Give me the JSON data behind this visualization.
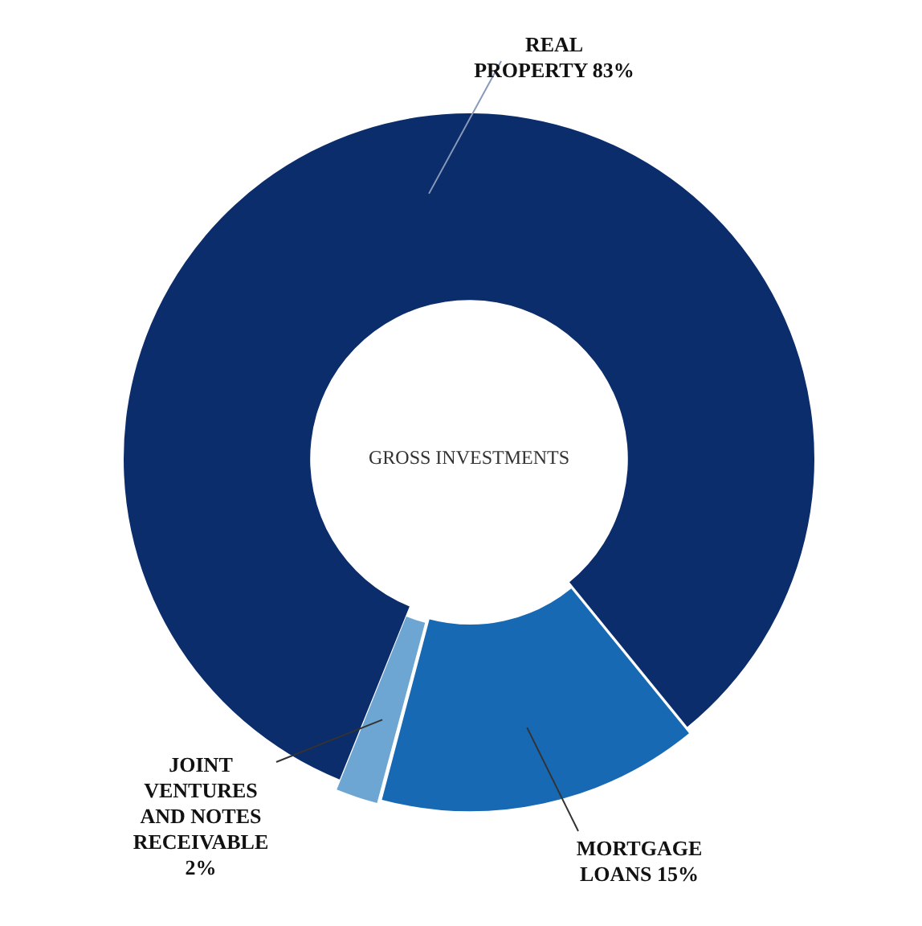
{
  "chart_data": {
    "type": "donut",
    "categories": [
      "REAL PROPERTY",
      "MORTGAGE LOANS",
      "JOINT VENTURES AND NOTES RECEIVABLE"
    ],
    "values": [
      83,
      15,
      2
    ],
    "colors": [
      "#0b2d6b",
      "#1769b4",
      "#6ea6d3"
    ],
    "value_labels": [
      "83%",
      "15%",
      "2%"
    ],
    "annotations": [
      "GROSS INVESTMENTS"
    ],
    "legend": false
  }
}
